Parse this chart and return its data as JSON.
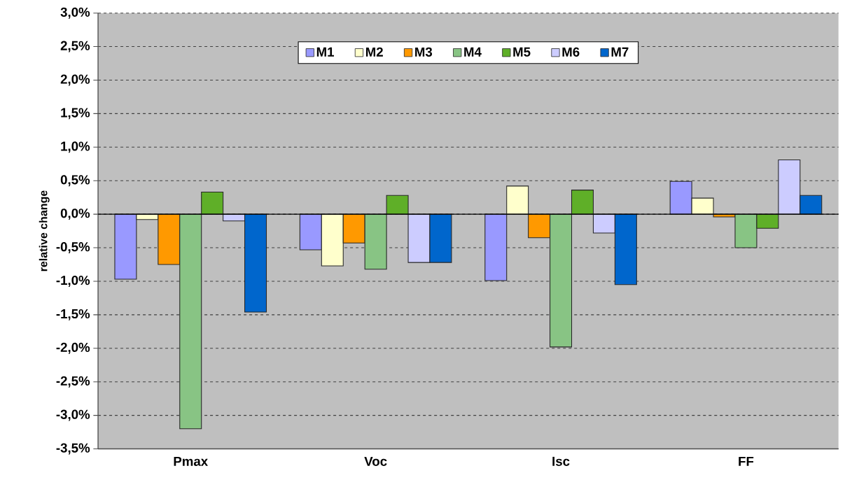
{
  "chart_data": {
    "type": "bar",
    "ylabel": "relative change",
    "categories": [
      "Pmax",
      "Voc",
      "Isc",
      "FF"
    ],
    "series": [
      {
        "name": "M1",
        "color": "#9999ff",
        "values": [
          -0.97,
          -0.53,
          -0.99,
          0.49
        ]
      },
      {
        "name": "M2",
        "color": "#ffffcc",
        "values": [
          -0.08,
          -0.77,
          0.42,
          0.24
        ]
      },
      {
        "name": "M3",
        "color": "#ff9900",
        "values": [
          -0.75,
          -0.43,
          -0.35,
          -0.04
        ]
      },
      {
        "name": "M4",
        "color": "#88c484",
        "values": [
          -3.2,
          -0.82,
          -1.98,
          -0.5
        ]
      },
      {
        "name": "M5",
        "color": "#5faf28",
        "values": [
          0.33,
          0.28,
          0.36,
          -0.21
        ]
      },
      {
        "name": "M6",
        "color": "#ccccff",
        "values": [
          -0.1,
          -0.72,
          -0.28,
          0.81
        ]
      },
      {
        "name": "M7",
        "color": "#0066cc",
        "values": [
          -1.46,
          -0.72,
          -1.05,
          0.28
        ]
      }
    ],
    "ylim": [
      -3.5,
      3.0
    ],
    "yticks": [
      {
        "value": -3.5,
        "label": "-3,5%"
      },
      {
        "value": -3.0,
        "label": "-3,0%"
      },
      {
        "value": -2.5,
        "label": "-2,5%"
      },
      {
        "value": -2.0,
        "label": "-2,0%"
      },
      {
        "value": -1.5,
        "label": "-1,5%"
      },
      {
        "value": -1.0,
        "label": "-1,0%"
      },
      {
        "value": -0.5,
        "label": "-0,5%"
      },
      {
        "value": 0.0,
        "label": "0,0%"
      },
      {
        "value": 0.5,
        "label": "0,5%"
      },
      {
        "value": 1.0,
        "label": "1,0%"
      },
      {
        "value": 1.5,
        "label": "1,5%"
      },
      {
        "value": 2.0,
        "label": "2,0%"
      },
      {
        "value": 2.5,
        "label": "2,5%"
      },
      {
        "value": 3.0,
        "label": "3,0%"
      }
    ],
    "grid": "y",
    "legend": "top"
  }
}
